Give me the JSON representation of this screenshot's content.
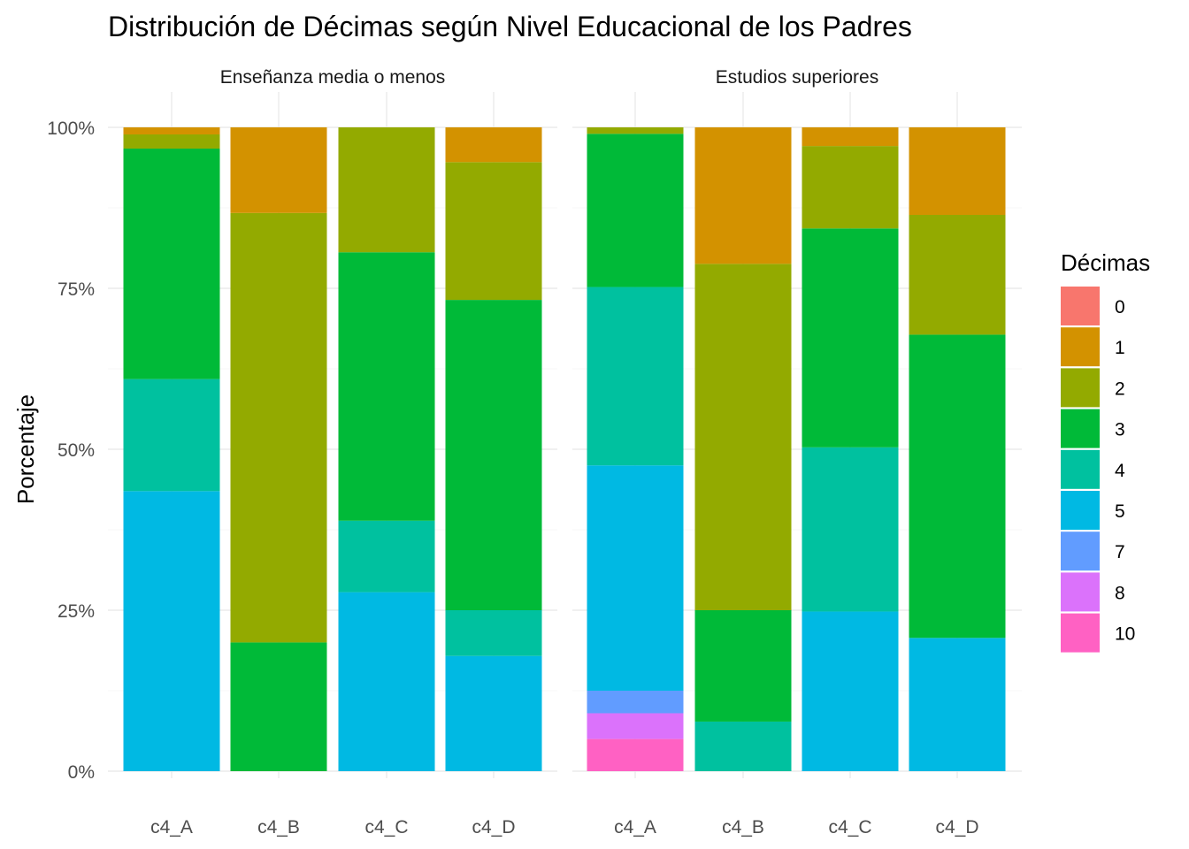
{
  "chart_data": {
    "type": "bar",
    "stacked": true,
    "position": "fill",
    "title": "Distribución de Décimas según Nivel Educacional de los Padres",
    "xlabel": "",
    "ylabel": "Porcentaje",
    "ylim": [
      0,
      1
    ],
    "y_ticks": [
      "0%",
      "25%",
      "50%",
      "75%",
      "100%"
    ],
    "grid": true,
    "legend": {
      "title": "Décimas",
      "placement": "right",
      "entries": [
        {
          "label": "0",
          "color": "#F8766D"
        },
        {
          "label": "1",
          "color": "#D39200"
        },
        {
          "label": "2",
          "color": "#93AA00"
        },
        {
          "label": "3",
          "color": "#00BA38"
        },
        {
          "label": "4",
          "color": "#00C19F"
        },
        {
          "label": "5",
          "color": "#00B9E3"
        },
        {
          "label": "7",
          "color": "#619CFF"
        },
        {
          "label": "8",
          "color": "#DB72FB"
        },
        {
          "label": "10",
          "color": "#FF61C3"
        }
      ]
    },
    "categories": [
      "c4_A",
      "c4_B",
      "c4_C",
      "c4_D"
    ],
    "panels": [
      {
        "name": "Enseñanza media o menos",
        "bars": [
          {
            "category": "c4_A",
            "segments": [
              {
                "decima": "5",
                "value": 0.435
              },
              {
                "decima": "4",
                "value": 0.174
              },
              {
                "decima": "3",
                "value": 0.358
              },
              {
                "decima": "2",
                "value": 0.022
              },
              {
                "decima": "1",
                "value": 0.011
              }
            ]
          },
          {
            "category": "c4_B",
            "segments": [
              {
                "decima": "3",
                "value": 0.2
              },
              {
                "decima": "2",
                "value": 0.667
              },
              {
                "decima": "1",
                "value": 0.133
              }
            ]
          },
          {
            "category": "c4_C",
            "segments": [
              {
                "decima": "5",
                "value": 0.278
              },
              {
                "decima": "4",
                "value": 0.111
              },
              {
                "decima": "3",
                "value": 0.417
              },
              {
                "decima": "2",
                "value": 0.194
              }
            ]
          },
          {
            "category": "c4_D",
            "segments": [
              {
                "decima": "5",
                "value": 0.179
              },
              {
                "decima": "4",
                "value": 0.071
              },
              {
                "decima": "3",
                "value": 0.482
              },
              {
                "decima": "2",
                "value": 0.214
              },
              {
                "decima": "1",
                "value": 0.054
              }
            ]
          }
        ]
      },
      {
        "name": "Estudios superiores",
        "bars": [
          {
            "category": "c4_A",
            "segments": [
              {
                "decima": "10",
                "value": 0.05
              },
              {
                "decima": "8",
                "value": 0.04
              },
              {
                "decima": "7",
                "value": 0.035
              },
              {
                "decima": "5",
                "value": 0.35
              },
              {
                "decima": "4",
                "value": 0.277
              },
              {
                "decima": "3",
                "value": 0.238
              },
              {
                "decima": "2",
                "value": 0.01
              }
            ]
          },
          {
            "category": "c4_B",
            "segments": [
              {
                "decima": "4",
                "value": 0.077
              },
              {
                "decima": "3",
                "value": 0.173
              },
              {
                "decima": "2",
                "value": 0.538
              },
              {
                "decima": "1",
                "value": 0.212
              }
            ]
          },
          {
            "category": "c4_C",
            "segments": [
              {
                "decima": "5",
                "value": 0.248
              },
              {
                "decima": "4",
                "value": 0.255
              },
              {
                "decima": "3",
                "value": 0.34
              },
              {
                "decima": "2",
                "value": 0.128
              },
              {
                "decima": "1",
                "value": 0.029
              }
            ]
          },
          {
            "category": "c4_D",
            "segments": [
              {
                "decima": "5",
                "value": 0.207
              },
              {
                "decima": "3",
                "value": 0.471
              },
              {
                "decima": "2",
                "value": 0.186
              },
              {
                "decima": "1",
                "value": 0.136
              }
            ]
          }
        ]
      }
    ]
  }
}
